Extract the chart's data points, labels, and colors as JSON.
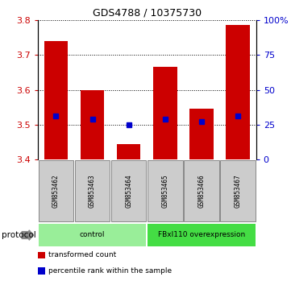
{
  "title": "GDS4788 / 10375730",
  "samples": [
    "GSM853462",
    "GSM853463",
    "GSM853464",
    "GSM853465",
    "GSM853466",
    "GSM853467"
  ],
  "bar_bottoms": [
    3.4,
    3.4,
    3.4,
    3.4,
    3.4,
    3.4
  ],
  "bar_tops": [
    3.74,
    3.6,
    3.445,
    3.665,
    3.545,
    3.785
  ],
  "percentile_values": [
    3.525,
    3.515,
    3.5,
    3.515,
    3.508,
    3.525
  ],
  "ylim_left": [
    3.4,
    3.8
  ],
  "ylim_right": [
    0,
    100
  ],
  "yticks_left": [
    3.4,
    3.5,
    3.6,
    3.7,
    3.8
  ],
  "yticks_right": [
    0,
    25,
    50,
    75,
    100
  ],
  "ytick_labels_right": [
    "0",
    "25",
    "50",
    "75",
    "100%"
  ],
  "bar_color": "#cc0000",
  "percentile_color": "#0000cc",
  "groups": [
    {
      "label": "control",
      "indices": [
        0,
        1,
        2
      ],
      "color": "#99ee99"
    },
    {
      "label": "FBxl110 overexpression",
      "indices": [
        3,
        4,
        5
      ],
      "color": "#44dd44"
    }
  ],
  "legend_items": [
    {
      "label": "transformed count",
      "color": "#cc0000"
    },
    {
      "label": "percentile rank within the sample",
      "color": "#0000cc"
    }
  ],
  "bar_width": 0.65,
  "label_box_color": "#cccccc",
  "label_box_edge": "#888888"
}
